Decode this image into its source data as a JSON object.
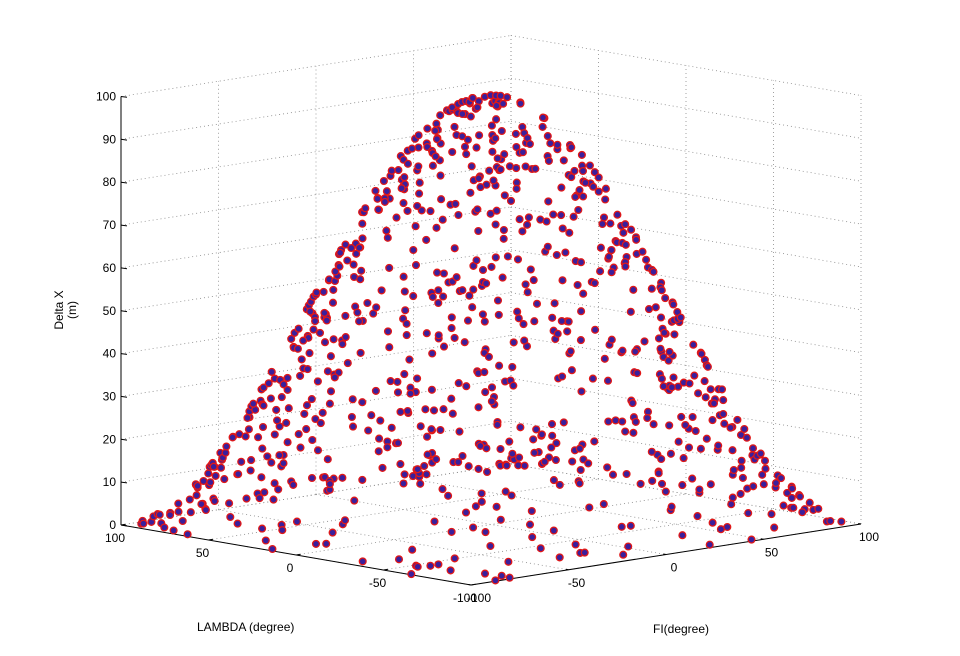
{
  "chart_data": {
    "type": "scatter",
    "projection": "3d",
    "xlabel": "LAMBDA (degree)",
    "ylabel": "FI(degree)",
    "zlabel_lines": [
      "Delta X",
      "(m)"
    ],
    "xlim": [
      -100,
      100
    ],
    "ylim": [
      -100,
      100
    ],
    "zlim": [
      0,
      100
    ],
    "x_ticks": [
      100,
      50,
      0,
      -50,
      -100
    ],
    "y_ticks": [
      -100,
      -50,
      0,
      50,
      100
    ],
    "z_ticks": [
      0,
      10,
      20,
      30,
      40,
      50,
      60,
      70,
      80,
      90,
      100
    ],
    "grid": true,
    "marker": {
      "face_color": "#3a1f9c",
      "edge_color": "#e01818",
      "shape": "circle"
    },
    "surface": "z = 100 * cos(lambda * 0.9°) * cos(fi * 0.9°)",
    "point_count": 900
  }
}
